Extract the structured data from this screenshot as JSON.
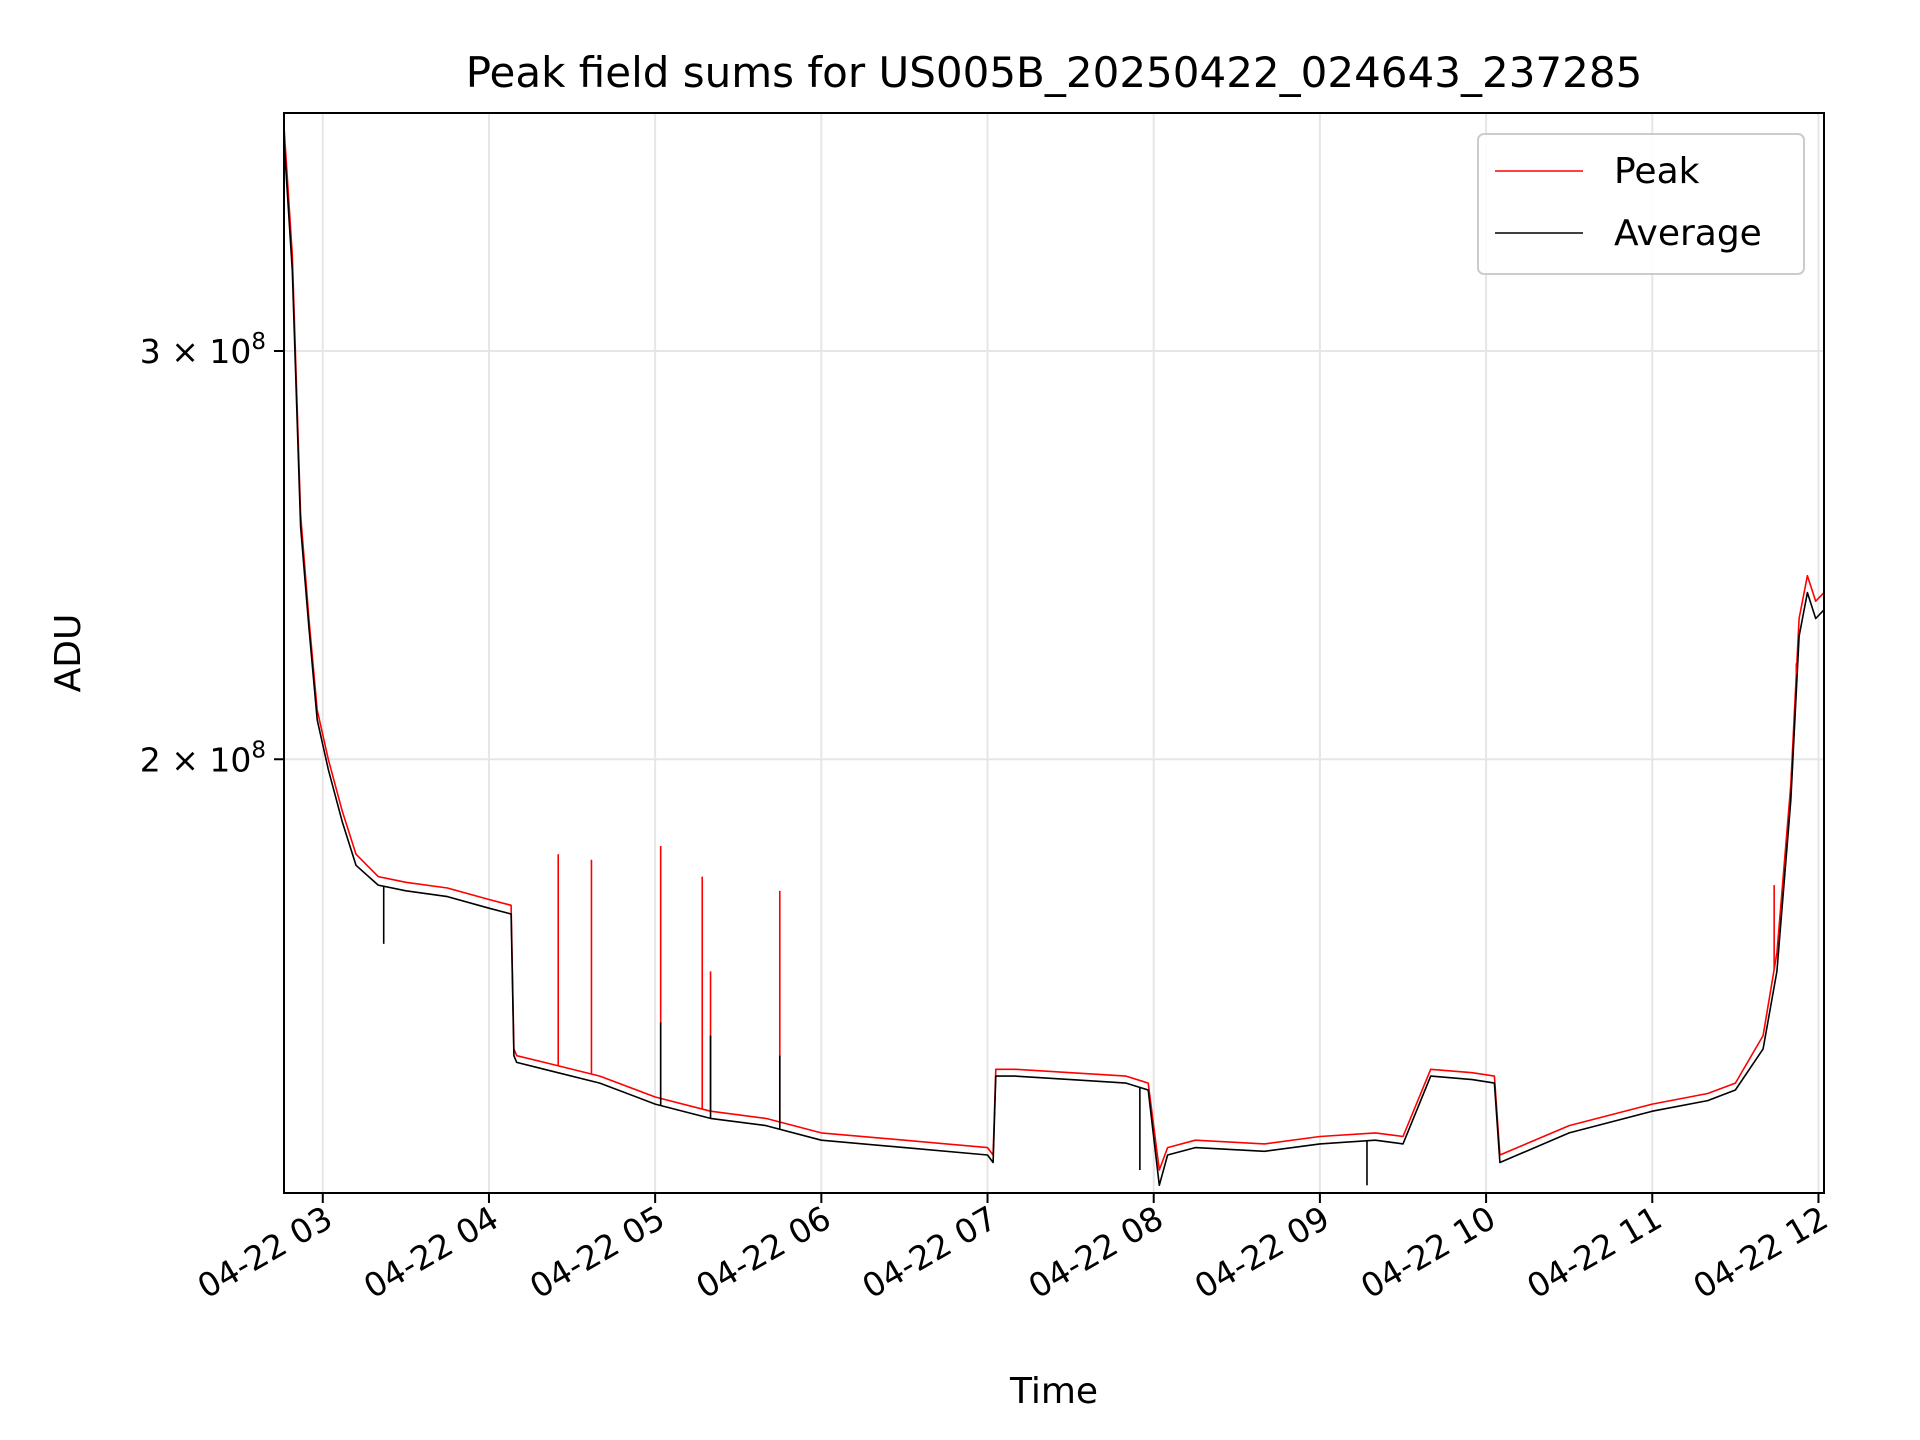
{
  "chart_data": {
    "type": "line",
    "title": "Peak field sums for US005B_20250422_024643_237285",
    "xlabel": "Time",
    "ylabel": "ADU",
    "x_axis": "date",
    "xlim": [
      "2025-04-22 02:46",
      "2025-04-22 12:02"
    ],
    "y_scale": "log",
    "ylim": [
      130000000,
      380000000
    ],
    "x_ticks": [
      {
        "value": "2025-04-22 03:00",
        "label": "04-22 03"
      },
      {
        "value": "2025-04-22 04:00",
        "label": "04-22 04"
      },
      {
        "value": "2025-04-22 05:00",
        "label": "04-22 05"
      },
      {
        "value": "2025-04-22 06:00",
        "label": "04-22 06"
      },
      {
        "value": "2025-04-22 07:00",
        "label": "04-22 07"
      },
      {
        "value": "2025-04-22 08:00",
        "label": "04-22 08"
      },
      {
        "value": "2025-04-22 09:00",
        "label": "04-22 09"
      },
      {
        "value": "2025-04-22 10:00",
        "label": "04-22 10"
      },
      {
        "value": "2025-04-22 11:00",
        "label": "04-22 11"
      },
      {
        "value": "2025-04-22 12:00",
        "label": "04-22 12"
      }
    ],
    "y_ticks": [
      {
        "value": 200000000,
        "mantissa": "2",
        "times": "×",
        "base": "10",
        "exponent": "8"
      },
      {
        "value": 300000000,
        "mantissa": "3",
        "times": "×",
        "base": "10",
        "exponent": "8"
      }
    ],
    "grid": true,
    "legend_position": "top-right",
    "series": [
      {
        "name": "Peak",
        "color": "#ff0000",
        "x": [
          "2025-04-22 02:46",
          "2025-04-22 02:49",
          "2025-04-22 02:52",
          "2025-04-22 02:55",
          "2025-04-22 02:58",
          "2025-04-22 03:02",
          "2025-04-22 03:07",
          "2025-04-22 03:12",
          "2025-04-22 03:20",
          "2025-04-22 03:30",
          "2025-04-22 03:45",
          "2025-04-22 04:00",
          "2025-04-22 04:08",
          "2025-04-22 04:09",
          "2025-04-22 04:10",
          "2025-04-22 04:20",
          "2025-04-22 04:40",
          "2025-04-22 05:00",
          "2025-04-22 05:20",
          "2025-04-22 05:40",
          "2025-04-22 06:00",
          "2025-04-22 06:30",
          "2025-04-22 07:00",
          "2025-04-22 07:02",
          "2025-04-22 07:03",
          "2025-04-22 07:10",
          "2025-04-22 07:30",
          "2025-04-22 07:50",
          "2025-04-22 07:58",
          "2025-04-22 08:02",
          "2025-04-22 08:05",
          "2025-04-22 08:15",
          "2025-04-22 08:40",
          "2025-04-22 09:00",
          "2025-04-22 09:20",
          "2025-04-22 09:30",
          "2025-04-22 09:40",
          "2025-04-22 09:55",
          "2025-04-22 10:03",
          "2025-04-22 10:05",
          "2025-04-22 10:30",
          "2025-04-22 11:00",
          "2025-04-22 11:20",
          "2025-04-22 11:30",
          "2025-04-22 11:40",
          "2025-04-22 11:45",
          "2025-04-22 11:50",
          "2025-04-22 11:53",
          "2025-04-22 11:56",
          "2025-04-22 11:59",
          "2025-04-22 12:02"
        ],
        "values": [
          375000000,
          330000000,
          255000000,
          230000000,
          210000000,
          200000000,
          190000000,
          182000000,
          178000000,
          177000000,
          176000000,
          174000000,
          173000000,
          150000000,
          149000000,
          148000000,
          146000000,
          143000000,
          141000000,
          140000000,
          138000000,
          137000000,
          136000000,
          135000000,
          147000000,
          147000000,
          146500000,
          146000000,
          145000000,
          133000000,
          136000000,
          137000000,
          136500000,
          137500000,
          138000000,
          137500000,
          147000000,
          146500000,
          146000000,
          135000000,
          139000000,
          142000000,
          143500000,
          145000000,
          152000000,
          165000000,
          195000000,
          230000000,
          240000000,
          234000000,
          236000000
        ]
      },
      {
        "name": "Average",
        "color": "#000000",
        "x": [
          "2025-04-22 02:46",
          "2025-04-22 02:49",
          "2025-04-22 02:52",
          "2025-04-22 02:55",
          "2025-04-22 02:58",
          "2025-04-22 03:02",
          "2025-04-22 03:07",
          "2025-04-22 03:12",
          "2025-04-22 03:20",
          "2025-04-22 03:30",
          "2025-04-22 03:45",
          "2025-04-22 04:00",
          "2025-04-22 04:08",
          "2025-04-22 04:09",
          "2025-04-22 04:10",
          "2025-04-22 04:20",
          "2025-04-22 04:40",
          "2025-04-22 05:00",
          "2025-04-22 05:20",
          "2025-04-22 05:40",
          "2025-04-22 06:00",
          "2025-04-22 06:30",
          "2025-04-22 07:00",
          "2025-04-22 07:02",
          "2025-04-22 07:03",
          "2025-04-22 07:10",
          "2025-04-22 07:30",
          "2025-04-22 07:50",
          "2025-04-22 07:58",
          "2025-04-22 08:02",
          "2025-04-22 08:05",
          "2025-04-22 08:15",
          "2025-04-22 08:40",
          "2025-04-22 09:00",
          "2025-04-22 09:20",
          "2025-04-22 09:30",
          "2025-04-22 09:40",
          "2025-04-22 09:55",
          "2025-04-22 10:03",
          "2025-04-22 10:05",
          "2025-04-22 10:30",
          "2025-04-22 11:00",
          "2025-04-22 11:20",
          "2025-04-22 11:30",
          "2025-04-22 11:40",
          "2025-04-22 11:45",
          "2025-04-22 11:50",
          "2025-04-22 11:53",
          "2025-04-22 11:56",
          "2025-04-22 11:59",
          "2025-04-22 12:02"
        ],
        "values": [
          370000000,
          325000000,
          252000000,
          228000000,
          208000000,
          198000000,
          188000000,
          180000000,
          176500000,
          175500000,
          174500000,
          172500000,
          171500000,
          149000000,
          148000000,
          147000000,
          145000000,
          142000000,
          140000000,
          139000000,
          137000000,
          136000000,
          135000000,
          134000000,
          146000000,
          146000000,
          145500000,
          145000000,
          144000000,
          131000000,
          135000000,
          136000000,
          135500000,
          136500000,
          137000000,
          136500000,
          146000000,
          145500000,
          145000000,
          134000000,
          138000000,
          141000000,
          142500000,
          144000000,
          150000000,
          162000000,
          192000000,
          226000000,
          236000000,
          230000000,
          232000000
        ]
      }
    ],
    "spikes": [
      {
        "series": "Peak",
        "x": "2025-04-22 04:25",
        "value": 182000000
      },
      {
        "series": "Peak",
        "x": "2025-04-22 04:37",
        "value": 181000000
      },
      {
        "series": "Peak",
        "x": "2025-04-22 05:02",
        "value": 183500000
      },
      {
        "series": "Peak",
        "x": "2025-04-22 05:17",
        "value": 178000000
      },
      {
        "series": "Peak",
        "x": "2025-04-22 05:20",
        "value": 162000000
      },
      {
        "series": "Peak",
        "x": "2025-04-22 05:45",
        "value": 175500000
      },
      {
        "series": "Peak",
        "x": "2025-04-22 11:52",
        "value": 220000000
      },
      {
        "series": "Peak",
        "x": "2025-04-22 11:44",
        "value": 176500000
      },
      {
        "series": "Average",
        "x": "2025-04-22 05:02",
        "value": 154000000
      },
      {
        "series": "Average",
        "x": "2025-04-22 05:20",
        "value": 152000000
      },
      {
        "series": "Average",
        "x": "2025-04-22 05:45",
        "value": 149000000
      },
      {
        "series": "Average",
        "x": "2025-04-22 03:22",
        "value": 166500000
      },
      {
        "series": "Average",
        "x": "2025-04-22 07:55",
        "value": 133000000
      },
      {
        "series": "Average",
        "x": "2025-04-22 09:17",
        "value": 131000000
      }
    ]
  }
}
